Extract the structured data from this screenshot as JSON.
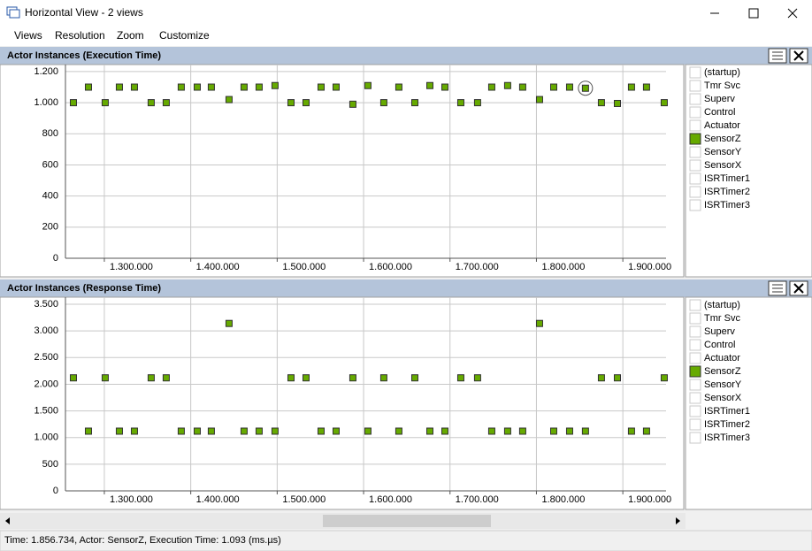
{
  "window": {
    "title": "Horizontal View - 2 views"
  },
  "menu": [
    "Views",
    "Resolution",
    "Zoom",
    "Customize"
  ],
  "chart_data": [
    {
      "type": "scatter",
      "title": "Actor Instances (Execution Time)",
      "xlim": [
        1255000,
        1950000
      ],
      "ylim": [
        0,
        1245
      ],
      "xticks": [
        {
          "value": 1300000,
          "label": "1.300.000"
        },
        {
          "value": 1400000,
          "label": "1.400.000"
        },
        {
          "value": 1500000,
          "label": "1.500.000"
        },
        {
          "value": 1600000,
          "label": "1.600.000"
        },
        {
          "value": 1700000,
          "label": "1.700.000"
        },
        {
          "value": 1800000,
          "label": "1.800.000"
        },
        {
          "value": 1900000,
          "label": "1.900.000"
        }
      ],
      "yticks": [
        0,
        200,
        400,
        600,
        800,
        {
          "value": 1000,
          "label": "1.000"
        },
        {
          "value": 1200,
          "label": "1.200"
        }
      ],
      "grid": true,
      "series": [
        {
          "color": "#66aa00",
          "highlight": 33,
          "x": [
            1264200,
            1281600,
            1301000,
            1317400,
            1334800,
            1354200,
            1371600,
            1389000,
            1407500,
            1423800,
            1444300,
            1461700,
            1479100,
            1497500,
            1516000,
            1533400,
            1550800,
            1568200,
            1587600,
            1605000,
            1623400,
            1640800,
            1659300,
            1676700,
            1694100,
            1712500,
            1731900,
            1748300,
            1766700,
            1784100,
            1803600,
            1820000,
            1838400,
            1856734,
            1875200,
            1893700,
            1910000,
            1927400,
            1947900
          ],
          "values": [
            1000,
            1100,
            1000,
            1100,
            1100,
            1000,
            1000,
            1100,
            1100,
            1100,
            1020,
            1100,
            1100,
            1110,
            1000,
            1000,
            1100,
            1100,
            990,
            1110,
            1000,
            1100,
            1000,
            1110,
            1100,
            1000,
            1000,
            1100,
            1110,
            1100,
            1020,
            1100,
            1100,
            1093,
            1000,
            995,
            1100,
            1100,
            1000
          ]
        }
      ],
      "legend": [
        {
          "label": "(startup)",
          "checked": false
        },
        {
          "label": "Tmr Svc",
          "checked": false
        },
        {
          "label": "Superv",
          "checked": false
        },
        {
          "label": "Control",
          "checked": false
        },
        {
          "label": "Actuator",
          "checked": false
        },
        {
          "label": "SensorZ",
          "checked": true
        },
        {
          "label": "SensorY",
          "checked": false
        },
        {
          "label": "SensorX",
          "checked": false
        },
        {
          "label": "ISRTimer1",
          "checked": false
        },
        {
          "label": "ISRTimer2",
          "checked": false
        },
        {
          "label": "ISRTimer3",
          "checked": false
        }
      ]
    },
    {
      "type": "scatter",
      "title": "Actor Instances (Response Time)",
      "xlim": [
        1255000,
        1950000
      ],
      "ylim": [
        0,
        3633
      ],
      "xticks": [
        {
          "value": 1300000,
          "label": "1.300.000"
        },
        {
          "value": 1400000,
          "label": "1.400.000"
        },
        {
          "value": 1500000,
          "label": "1.500.000"
        },
        {
          "value": 1600000,
          "label": "1.600.000"
        },
        {
          "value": 1700000,
          "label": "1.700.000"
        },
        {
          "value": 1800000,
          "label": "1.800.000"
        },
        {
          "value": 1900000,
          "label": "1.900.000"
        }
      ],
      "yticks": [
        0,
        500,
        {
          "value": 1000,
          "label": "1.000"
        },
        {
          "value": 1500,
          "label": "1.500"
        },
        {
          "value": 2000,
          "label": "2.000"
        },
        {
          "value": 2500,
          "label": "2.500"
        },
        {
          "value": 3000,
          "label": "3.000"
        },
        {
          "value": 3500,
          "label": "3.500"
        }
      ],
      "grid": true,
      "series": [
        {
          "color": "#66aa00",
          "x": [
            1264200,
            1281600,
            1301000,
            1317400,
            1334800,
            1354200,
            1371600,
            1389000,
            1407500,
            1423800,
            1444300,
            1461700,
            1479100,
            1497500,
            1516000,
            1533400,
            1550800,
            1568200,
            1587600,
            1605000,
            1623400,
            1640800,
            1659300,
            1676700,
            1694100,
            1712500,
            1731900,
            1748300,
            1766700,
            1784100,
            1803600,
            1820000,
            1838400,
            1856734,
            1875200,
            1893700,
            1910000,
            1927400,
            1947900
          ],
          "values": [
            2120,
            1120,
            2120,
            1120,
            1120,
            2120,
            2120,
            1120,
            1120,
            1120,
            3140,
            1120,
            1120,
            1120,
            2120,
            2120,
            1120,
            1120,
            2120,
            1120,
            2120,
            1120,
            2120,
            1120,
            1120,
            2120,
            2120,
            1120,
            1120,
            1120,
            3140,
            1120,
            1120,
            1120,
            2120,
            2120,
            1120,
            1120,
            2120
          ]
        }
      ],
      "legend": [
        {
          "label": "(startup)",
          "checked": false
        },
        {
          "label": "Tmr Svc",
          "checked": false
        },
        {
          "label": "Superv",
          "checked": false
        },
        {
          "label": "Control",
          "checked": false
        },
        {
          "label": "Actuator",
          "checked": false
        },
        {
          "label": "SensorZ",
          "checked": true
        },
        {
          "label": "SensorY",
          "checked": false
        },
        {
          "label": "SensorX",
          "checked": false
        },
        {
          "label": "ISRTimer1",
          "checked": false
        },
        {
          "label": "ISRTimer2",
          "checked": false
        },
        {
          "label": "ISRTimer3",
          "checked": false
        }
      ]
    }
  ],
  "status": "Time: 1.856.734, Actor: SensorZ, Execution Time: 1.093 (ms.µs)"
}
